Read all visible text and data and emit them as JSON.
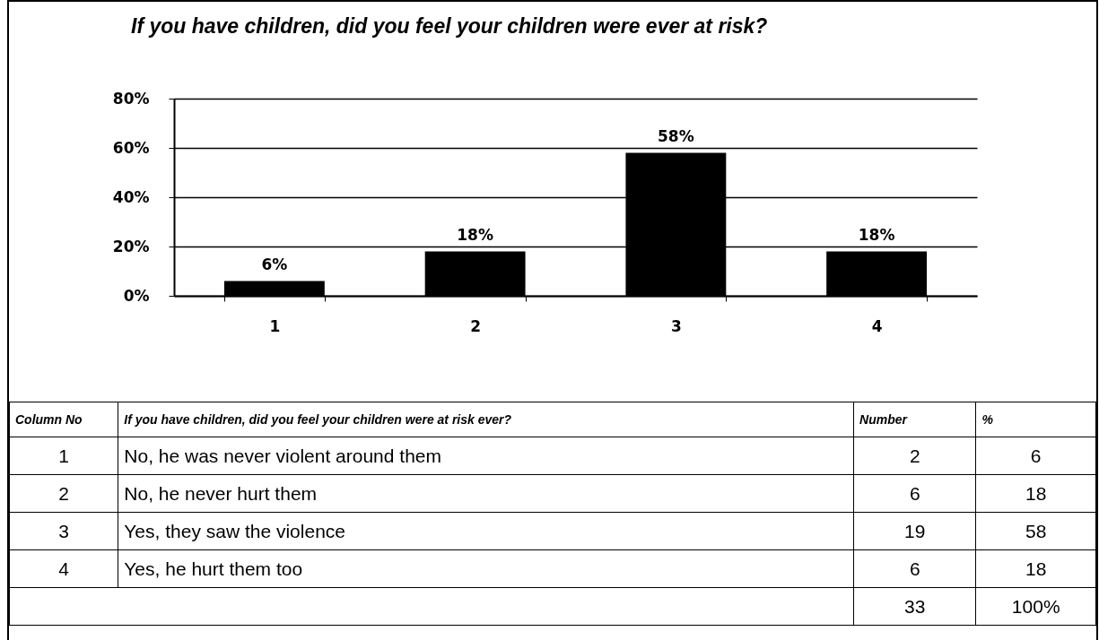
{
  "chart_data": {
    "type": "bar",
    "title": "If you have children, did you feel your children were ever at risk?",
    "categories": [
      "1",
      "2",
      "3",
      "4"
    ],
    "values": [
      6,
      18,
      58,
      18
    ],
    "color": "#000000",
    "value_labels": [
      "6%",
      "18%",
      "58%",
      "18%"
    ],
    "ylim": [
      0,
      80
    ],
    "yticks": [
      {
        "value": 0,
        "label": "0%"
      },
      {
        "value": 20,
        "label": "20%"
      },
      {
        "value": 40,
        "label": "40%"
      },
      {
        "value": 60,
        "label": "60%"
      },
      {
        "value": 80,
        "label": "80%"
      }
    ],
    "grid": "y",
    "annotations": [
      "Column No",
      "If you have children, did you feel your children were at risk ever?",
      "Number",
      "%",
      "1",
      "No, he was never violent around them",
      "2",
      "6",
      "2",
      "No, he never hurt them",
      "6",
      "18",
      "3",
      "Yes, they saw the violence",
      "19",
      "58",
      "4",
      "Yes, he hurt them too",
      "6",
      "18",
      "33",
      "100%"
    ]
  }
}
